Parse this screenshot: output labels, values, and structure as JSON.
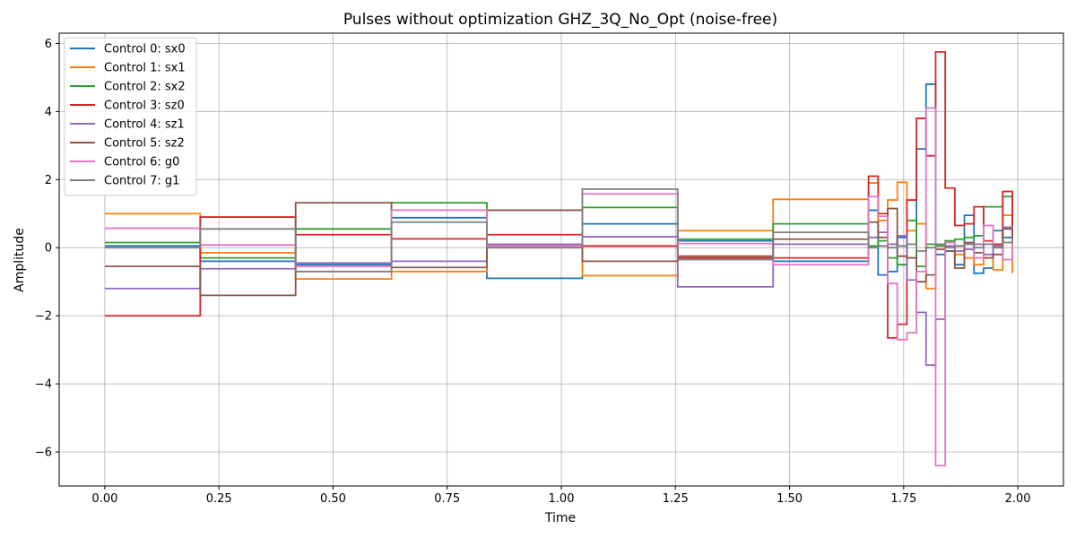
{
  "chart_data": {
    "type": "line",
    "step": "post",
    "title": "Pulses without optimization GHZ_3Q_No_Opt (noise-free)",
    "xlabel": "Time",
    "ylabel": "Amplitude",
    "xlim": [
      -0.1,
      2.1
    ],
    "ylim": [
      -7.0,
      6.3
    ],
    "xticks": [
      0.0,
      0.25,
      0.5,
      0.75,
      1.0,
      1.25,
      1.5,
      1.75,
      2.0
    ],
    "xtick_labels": [
      "0.00",
      "0.25",
      "0.50",
      "0.75",
      "1.00",
      "1.25",
      "1.50",
      "1.75",
      "2.00"
    ],
    "yticks": [
      -6,
      -4,
      -2,
      0,
      2,
      4,
      6
    ],
    "ytick_labels": [
      "−6",
      "−4",
      "−2",
      "0",
      "2",
      "4",
      "6"
    ],
    "grid": true,
    "legend_position": "upper-left",
    "x": [
      0.0,
      0.209,
      0.418,
      0.628,
      0.837,
      1.046,
      1.255,
      1.464,
      1.673,
      1.694,
      1.715,
      1.736,
      1.757,
      1.778,
      1.799,
      1.82,
      1.841,
      1.862,
      1.883,
      1.904,
      1.925,
      1.946,
      1.967,
      1.988
    ],
    "series": [
      {
        "name": "Control 0: sx0",
        "color": "#1f77b4",
        "values": [
          0.05,
          -0.4,
          -0.5,
          0.88,
          -0.9,
          0.7,
          0.2,
          -0.4,
          1.1,
          -0.8,
          -0.7,
          0.3,
          -0.3,
          2.9,
          4.8,
          -0.2,
          -0.1,
          -0.5,
          0.95,
          -0.75,
          -0.6,
          0.5,
          0.3,
          -0.3
        ]
      },
      {
        "name": "Control 1: sx1",
        "color": "#ff7f0e",
        "values": [
          1.0,
          -0.15,
          -0.92,
          -0.7,
          0.05,
          -0.82,
          0.5,
          1.42,
          1.9,
          0.8,
          1.4,
          1.92,
          0.5,
          0.7,
          -1.2,
          0.1,
          0.2,
          -0.2,
          -0.3,
          -0.5,
          -0.3,
          -0.65,
          0.95,
          -0.75
        ]
      },
      {
        "name": "Control 2: sx2",
        "color": "#2ca02c",
        "values": [
          0.15,
          -0.3,
          0.55,
          1.32,
          0.1,
          1.18,
          0.25,
          0.7,
          0.05,
          0.2,
          -0.3,
          -0.5,
          0.8,
          -0.55,
          0.1,
          0.05,
          0.2,
          0.25,
          0.3,
          0.35,
          1.2,
          1.2,
          1.5,
          0.5
        ]
      },
      {
        "name": "Control 3: sz0",
        "color": "#d62728",
        "values": [
          -2.0,
          0.9,
          0.38,
          0.26,
          0.38,
          0.05,
          -0.3,
          -0.3,
          2.1,
          1.0,
          -2.65,
          -2.25,
          1.4,
          3.8,
          2.7,
          5.75,
          1.75,
          0.65,
          0.7,
          1.2,
          0.2,
          0.1,
          1.65,
          0.6
        ]
      },
      {
        "name": "Control 4: sz1",
        "color": "#9467bd",
        "values": [
          -1.2,
          -0.62,
          -0.45,
          -0.4,
          0.1,
          0.32,
          -1.15,
          0.1,
          0.3,
          0.45,
          0.1,
          0.35,
          -0.95,
          -1.9,
          -3.45,
          -2.1,
          0.05,
          -0.1,
          -0.05,
          0.1,
          -0.2,
          0.05,
          0.6,
          0.4
        ]
      },
      {
        "name": "Control 5: sz2",
        "color": "#8c564b",
        "values": [
          -0.55,
          -1.4,
          1.32,
          -0.58,
          1.1,
          -0.4,
          -0.25,
          0.25,
          0.75,
          0.3,
          1.15,
          -0.25,
          -0.3,
          -1.0,
          -0.8,
          -0.05,
          -0.1,
          -0.6,
          0.15,
          -0.15,
          -0.3,
          -0.2,
          0.55,
          0.1
        ]
      },
      {
        "name": "Control 6: g0",
        "color": "#e377c2",
        "values": [
          0.57,
          0.08,
          -0.55,
          1.1,
          0.05,
          1.58,
          0.12,
          -0.5,
          1.5,
          0.92,
          -1.05,
          -2.7,
          -2.5,
          -0.7,
          4.1,
          -6.4,
          0.15,
          0.05,
          0.1,
          -0.3,
          0.65,
          0.0,
          -0.35,
          0.2
        ]
      },
      {
        "name": "Control 7: g1",
        "color": "#7f7f7f",
        "values": [
          0.0,
          0.55,
          -0.7,
          0.75,
          0.0,
          1.72,
          -0.35,
          0.45,
          0.0,
          0.05,
          0.0,
          0.05,
          0.1,
          -0.1,
          0.0,
          0.1,
          0.0,
          0.05,
          0.1,
          0.0,
          0.1,
          0.0,
          0.15,
          0.3
        ]
      }
    ],
    "x_end": 1.988
  }
}
